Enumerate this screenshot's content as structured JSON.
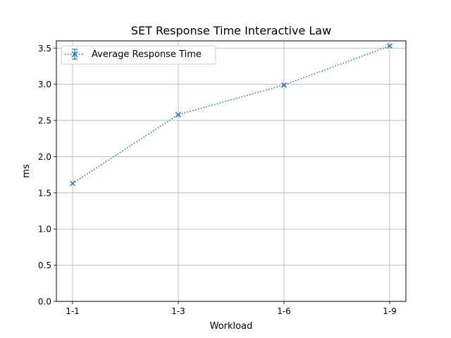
{
  "chart_data": {
    "type": "line",
    "title": "SET Response Time Interactive Law",
    "xlabel": "Workload",
    "ylabel": "ms",
    "categories": [
      "1-1",
      "1-3",
      "1-6",
      "1-9"
    ],
    "series": [
      {
        "name": "Average Response Time",
        "values": [
          1.63,
          2.58,
          2.99,
          3.53
        ],
        "color": "#1f77b4",
        "line_style": "dotted",
        "marker": "x",
        "error_bars": true
      }
    ],
    "ylim": [
      0,
      3.6
    ],
    "yticks": [
      "0.0",
      "0.5",
      "1.0",
      "1.5",
      "2.0",
      "2.5",
      "3.0",
      "3.5"
    ],
    "grid": true,
    "legend_position": "top-left"
  }
}
